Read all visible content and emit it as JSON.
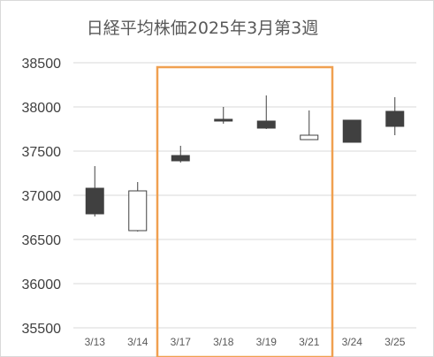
{
  "chart_data": {
    "type": "candlestick",
    "title": "日経平均株価2025年3月第3週",
    "xlabel": "",
    "ylabel": "",
    "ylim": [
      35500,
      38500
    ],
    "yticks": [
      35500,
      36000,
      36500,
      37000,
      37500,
      38000,
      38500
    ],
    "grid": true,
    "legend": "none",
    "categories": [
      "3/13",
      "3/14",
      "3/17",
      "3/18",
      "3/19",
      "3/21",
      "3/24",
      "3/25"
    ],
    "candles": [
      {
        "date": "3/13",
        "open": 37080,
        "high": 37330,
        "low": 36760,
        "close": 36790
      },
      {
        "date": "3/14",
        "open": 36600,
        "high": 37150,
        "low": 36590,
        "close": 37050
      },
      {
        "date": "3/17",
        "open": 37450,
        "high": 37560,
        "low": 37370,
        "close": 37390
      },
      {
        "date": "3/18",
        "open": 37860,
        "high": 38000,
        "low": 37810,
        "close": 37840
      },
      {
        "date": "3/19",
        "open": 37840,
        "high": 38130,
        "low": 37750,
        "close": 37760
      },
      {
        "date": "3/21",
        "open": 37630,
        "high": 37960,
        "low": 37630,
        "close": 37680
      },
      {
        "date": "3/24",
        "open": 37850,
        "high": 37850,
        "low": 37600,
        "close": 37600
      },
      {
        "date": "3/25",
        "open": 37950,
        "high": 38110,
        "low": 37680,
        "close": 37780
      }
    ],
    "highlight_range": [
      "3/17",
      "3/21"
    ],
    "colors": {
      "down_body": "#404040",
      "up_body": "#ffffff",
      "wick": "#404040",
      "grid": "#d9d9d9",
      "highlight": "#f0a050"
    }
  }
}
